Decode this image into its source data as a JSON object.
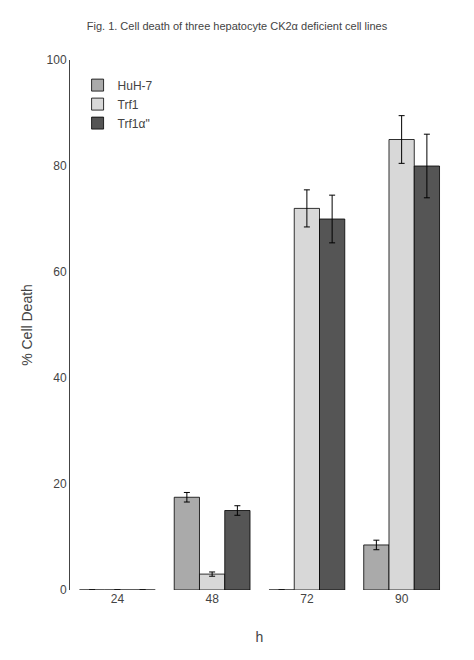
{
  "chart_data": {
    "type": "bar",
    "title": "Fig. 1. Cell death of three hepatocyte CK2α deficient cell lines",
    "xlabel": "h",
    "ylabel": "% Cell Death",
    "categories": [
      "24",
      "48",
      "72",
      "90"
    ],
    "series": [
      {
        "name": "HuH-7",
        "color": "#aaaaaa",
        "values": [
          0,
          17.5,
          0,
          8.5
        ],
        "errors": [
          0,
          0.9,
          0,
          0.9
        ]
      },
      {
        "name": "Trf1",
        "color": "#d8d8d8",
        "values": [
          0,
          3.0,
          72.0,
          85.0
        ],
        "errors": [
          0,
          0.4,
          3.5,
          4.5
        ]
      },
      {
        "name": "Trf1α\"",
        "color": "#555555",
        "values": [
          0,
          15.0,
          70.0,
          80.0
        ],
        "errors": [
          0,
          0.9,
          4.5,
          6.0
        ]
      }
    ],
    "ylim": [
      0,
      100
    ],
    "yticks": [
      0,
      20,
      40,
      60,
      80,
      100
    ],
    "grid": false,
    "legend": "upper left"
  }
}
